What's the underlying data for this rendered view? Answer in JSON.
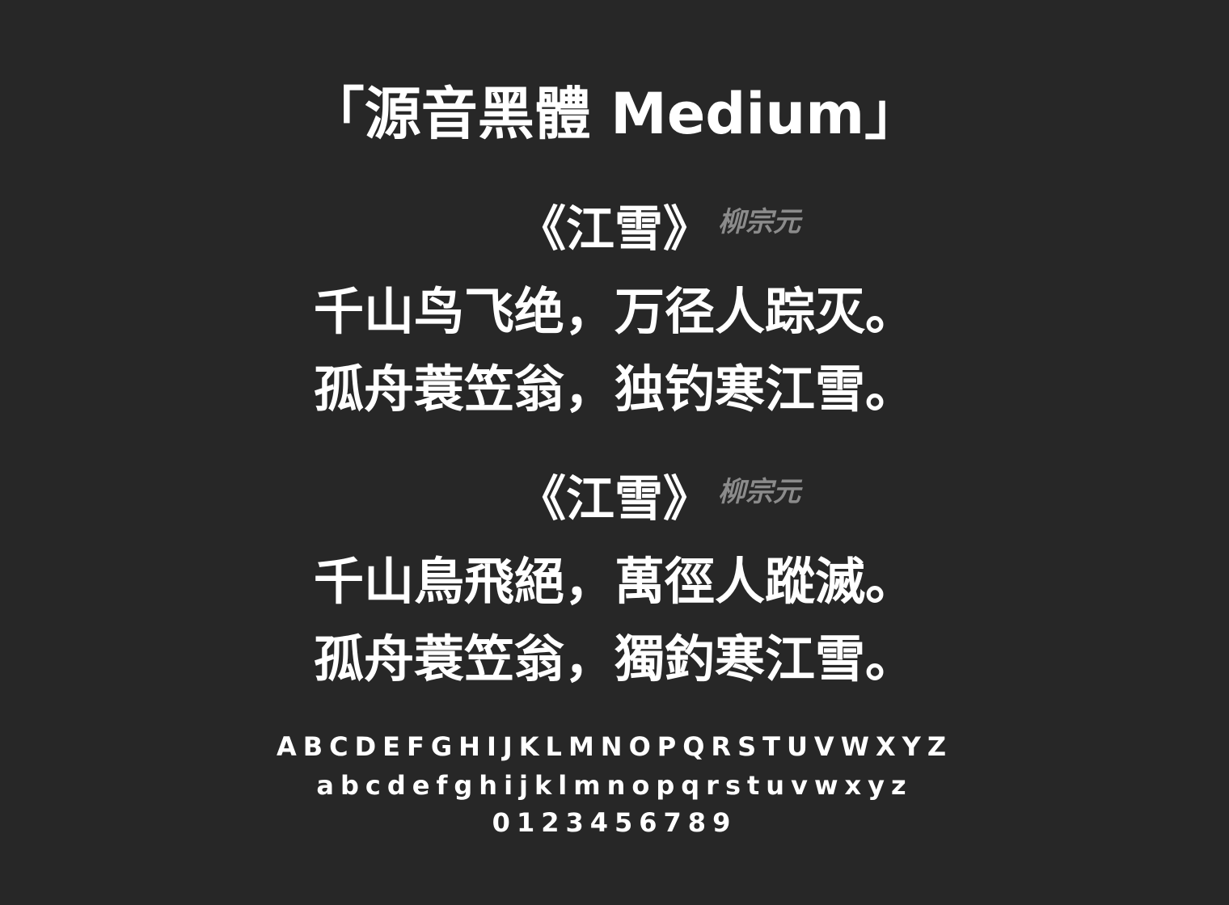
{
  "title": "「源音黑體 Medium」",
  "poems": [
    {
      "title": "《江雪》",
      "author": "柳宗元",
      "lines": [
        "千山鸟飞绝，万径人踪灭。",
        "孤舟蓑笠翁，独钓寒江雪。"
      ]
    },
    {
      "title": "《江雪》",
      "author": "柳宗元",
      "lines": [
        "千山鳥飛絕，萬徑人蹤滅。",
        "孤舟蓑笠翁，獨釣寒江雪。"
      ]
    }
  ],
  "specimen": {
    "uppercase": "ABCDEFGHIJKLMNOPQRSTUVWXYZ",
    "lowercase": "abcdefghijklmnopqrstuvwxyz",
    "digits": "0123456789"
  },
  "colors": {
    "background": "#272727",
    "text": "#ffffff",
    "author": "#8b8b8b"
  }
}
